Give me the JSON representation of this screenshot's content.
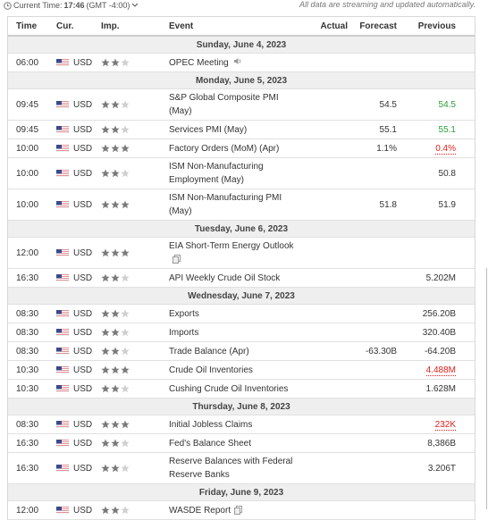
{
  "header": {
    "time_label": "Current Time:",
    "time": "17:46",
    "timezone": "(GMT -4:00)",
    "notice": "All data are streaming and updated automatically."
  },
  "columns": [
    "Time",
    "Cur.",
    "Imp.",
    "Event",
    "Actual",
    "Forecast",
    "Previous"
  ],
  "stars_max": 3,
  "sections": [
    {
      "date": "Sunday, June 4, 2023",
      "rows": [
        {
          "time": "06:00",
          "currency": "USD",
          "importance": 2,
          "event": "OPEC Meeting",
          "icon": "audio"
        }
      ]
    },
    {
      "date": "Monday, June 5, 2023",
      "rows": [
        {
          "time": "09:45",
          "currency": "USD",
          "importance": 2,
          "event": "S&P Global Composite PMI (May)",
          "forecast": "54.5",
          "previous": "54.5",
          "previous_color": "#2a9d3a"
        },
        {
          "time": "09:45",
          "currency": "USD",
          "importance": 2,
          "event": "Services PMI (May)",
          "forecast": "55.1",
          "previous": "55.1",
          "previous_color": "#2a9d3a"
        },
        {
          "time": "10:00",
          "currency": "USD",
          "importance": 3,
          "event": "Factory Orders (MoM) (Apr)",
          "forecast": "1.1%",
          "previous": "0.4%",
          "previous_color": "#e0211d"
        },
        {
          "time": "10:00",
          "currency": "USD",
          "importance": 2,
          "event": "ISM Non-Manufacturing Employment (May)",
          "previous": "50.8"
        },
        {
          "time": "10:00",
          "currency": "USD",
          "importance": 3,
          "event": "ISM Non-Manufacturing PMI (May)",
          "forecast": "51.8",
          "previous": "51.9"
        }
      ]
    },
    {
      "date": "Tuesday, June 6, 2023",
      "rows": [
        {
          "time": "12:00",
          "currency": "USD",
          "importance": 3,
          "event": "EIA Short-Term Energy Outlook",
          "icon": "report"
        },
        {
          "time": "16:30",
          "currency": "USD",
          "importance": 2,
          "event": "API Weekly Crude Oil Stock",
          "previous": "5.202M"
        }
      ]
    },
    {
      "date": "Wednesday, June 7, 2023",
      "rows": [
        {
          "time": "08:30",
          "currency": "USD",
          "importance": 2,
          "event": "Exports",
          "previous": "256.20B"
        },
        {
          "time": "08:30",
          "currency": "USD",
          "importance": 2,
          "event": "Imports",
          "previous": "320.40B"
        },
        {
          "time": "08:30",
          "currency": "USD",
          "importance": 2,
          "event": "Trade Balance (Apr)",
          "forecast": "-63.30B",
          "previous": "-64.20B"
        },
        {
          "time": "10:30",
          "currency": "USD",
          "importance": 3,
          "event": "Crude Oil Inventories",
          "previous": "4.488M",
          "previous_color": "#e0211d"
        },
        {
          "time": "10:30",
          "currency": "USD",
          "importance": 2,
          "event": "Cushing Crude Oil Inventories",
          "previous": "1.628M"
        }
      ]
    },
    {
      "date": "Thursday, June 8, 2023",
      "rows": [
        {
          "time": "08:30",
          "currency": "USD",
          "importance": 3,
          "event": "Initial Jobless Claims",
          "previous": "232K",
          "previous_color": "#e0211d"
        },
        {
          "time": "16:30",
          "currency": "USD",
          "importance": 2,
          "event": "Fed's Balance Sheet",
          "previous": "8,386B"
        },
        {
          "time": "16:30",
          "currency": "USD",
          "importance": 2,
          "event": "Reserve Balances with Federal Reserve Banks",
          "previous": "3.206T"
        }
      ]
    },
    {
      "date": "Friday, June 9, 2023",
      "rows": [
        {
          "time": "12:00",
          "currency": "USD",
          "importance": 2,
          "event": "WASDE Report",
          "icon": "report"
        }
      ]
    }
  ]
}
